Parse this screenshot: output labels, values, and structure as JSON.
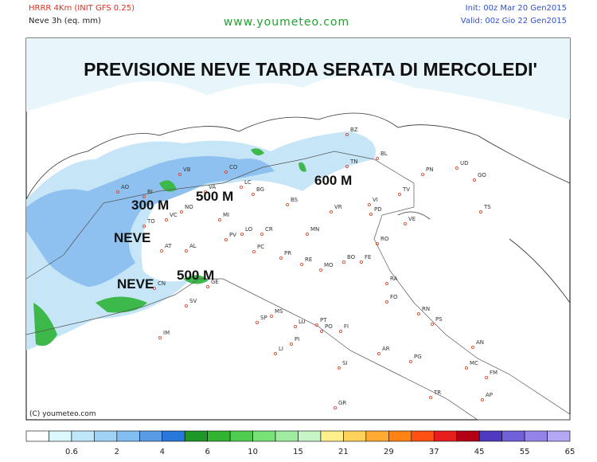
{
  "header": {
    "model": "HRRR 4Km (INIT GFS 0.25)",
    "field": "Neve 3h (eq. mm)",
    "site": "www.youmeteo.com",
    "init": "Init: 00z Mar 20 Gen2015",
    "valid": "Valid: 00z Gio 22 Gen2015"
  },
  "map": {
    "title": "PREVISIONE NEVE TARDA SERATA DI MERCOLEDI'",
    "annotations": [
      "300 M",
      "500 M",
      "600 M",
      "NEVE",
      "NEVE",
      "500 M"
    ],
    "cities": [
      "BZ",
      "TN",
      "UD",
      "PN",
      "GO",
      "TS",
      "BL",
      "TV",
      "VE",
      "VI",
      "PD",
      "VR",
      "RO",
      "FE",
      "BS",
      "BG",
      "LC",
      "CO",
      "VB",
      "NO",
      "VA",
      "MI",
      "AO",
      "BI",
      "VC",
      "TO",
      "AT",
      "AL",
      "CN",
      "SV",
      "GE",
      "IM",
      "PV",
      "LO",
      "CR",
      "PC",
      "PR",
      "MN",
      "RE",
      "MO",
      "BO",
      "RA",
      "FO",
      "RN",
      "PS",
      "SP",
      "MS",
      "LU",
      "PT",
      "PO",
      "FI",
      "PI",
      "LI",
      "AR",
      "SI",
      "GR",
      "PG",
      "AN",
      "MC",
      "AP",
      "FM",
      "TR"
    ],
    "copyright": "(C) youmeteo.com"
  },
  "legend": {
    "labels": [
      "0.6",
      "2",
      "4",
      "6",
      "10",
      "15",
      "21",
      "29",
      "37",
      "45",
      "55",
      "65"
    ],
    "colors": [
      "#ffffff",
      "#dcf8ff",
      "#bee8fa",
      "#a0d2f5",
      "#82bef0",
      "#5a9be6",
      "#2878dc",
      "#1e9628",
      "#32b432",
      "#50cd50",
      "#78e178",
      "#a0eba0",
      "#c8f5c8",
      "#fff08c",
      "#ffd25a",
      "#ffaa32",
      "#ff8214",
      "#ff5014",
      "#e61e1e",
      "#b40014",
      "#5038c0",
      "#7060d8",
      "#9484e8",
      "#b4a8f4"
    ]
  }
}
